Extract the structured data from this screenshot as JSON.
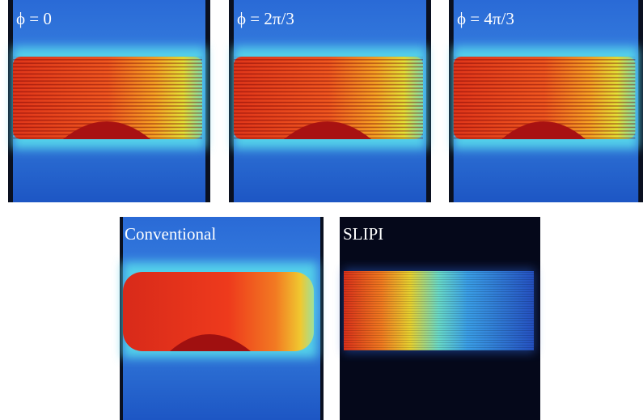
{
  "panels": [
    {
      "label": "ϕ = 0"
    },
    {
      "label": "ϕ = 2π/3"
    },
    {
      "label": "ϕ = 4π/3"
    },
    {
      "label": "Conventional"
    },
    {
      "label": "SLIPI"
    }
  ]
}
